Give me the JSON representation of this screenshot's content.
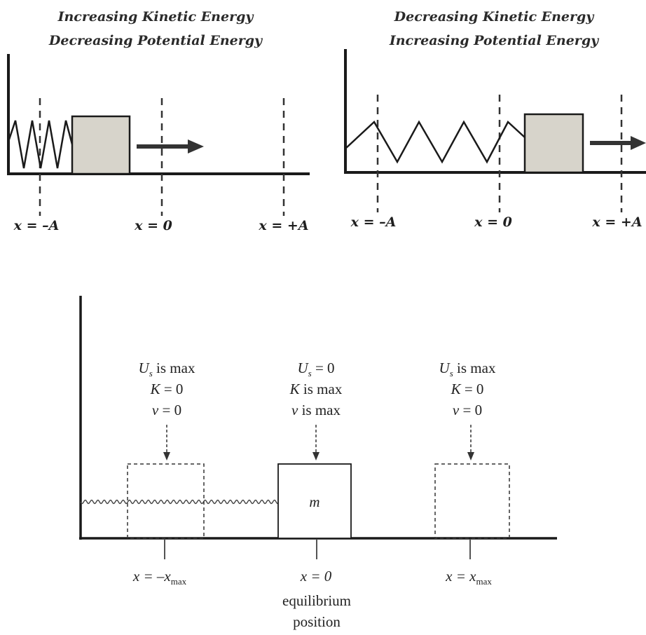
{
  "top_left_panel": {
    "title_line1": "Increasing Kinetic Energy",
    "title_line2": "Decreasing Potential Energy",
    "labels": {
      "neg_a": "x = –A",
      "zero": "x = 0",
      "pos_a": "x = +A"
    }
  },
  "top_right_panel": {
    "title_line1": "Decreasing Kinetic Energy",
    "title_line2": "Increasing Potential Energy",
    "labels": {
      "neg_a": "x = –A",
      "zero": "x = 0",
      "pos_a": "x = +A"
    }
  },
  "bottom_panel": {
    "left_state": {
      "u": "U",
      "u_sub": "s",
      "u_rest": " is max",
      "k": "K",
      "k_rest": " = 0",
      "v": "v",
      "v_rest": " = 0"
    },
    "center_state": {
      "u": "U",
      "u_sub": "s",
      "u_rest": " = 0",
      "k": "K",
      "k_rest": " is max",
      "v": "v",
      "v_rest": " is max"
    },
    "right_state": {
      "u": "U",
      "u_sub": "s",
      "u_rest": " is max",
      "k": "K",
      "k_rest": " = 0",
      "v": "v",
      "v_rest": " = 0"
    },
    "mass_label": "m",
    "axis_labels": {
      "left_main": "x = –x",
      "left_sub": "max",
      "center": "x = 0",
      "right_main": "x = x",
      "right_sub": "max"
    },
    "equilibrium_line1": "equilibrium",
    "equilibrium_line2": "position"
  },
  "colors": {
    "block_fill": "#d7d4cb",
    "line": "#1a1a1a",
    "dashed": "#333333"
  }
}
